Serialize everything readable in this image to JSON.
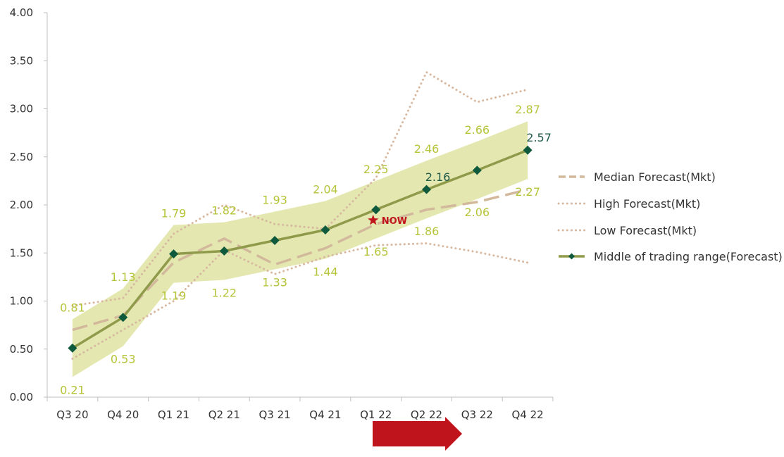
{
  "chart_data": {
    "type": "line",
    "categories": [
      "Q3 20",
      "Q4 20",
      "Q1 21",
      "Q2 21",
      "Q3 21",
      "Q4 21",
      "Q1 22",
      "Q2 22",
      "Q3 22",
      "Q4 22"
    ],
    "ylim": [
      0,
      4
    ],
    "y_ticks": [
      "0.00",
      "0.50",
      "1.00",
      "1.50",
      "2.00",
      "2.50",
      "3.00",
      "3.50",
      "4.00"
    ],
    "trading_range": {
      "upper": [
        0.81,
        1.13,
        1.79,
        1.82,
        1.93,
        2.04,
        2.25,
        2.46,
        2.66,
        2.87
      ],
      "lower": [
        0.21,
        0.53,
        1.19,
        1.22,
        1.33,
        1.44,
        1.65,
        1.86,
        2.06,
        2.27
      ],
      "upper_labels": [
        "0.81",
        "1.13",
        "1.79",
        "1.82",
        "1.93",
        "2.04",
        "2.25",
        "2.46",
        "2.66",
        "2.87"
      ],
      "lower_labels": [
        "0.21",
        "0.53",
        "1.19",
        "1.22",
        "1.33",
        "1.44",
        "1.65",
        "1.86",
        "2.06",
        "2.27"
      ]
    },
    "series": [
      {
        "name": "Median Forecast(Mkt)",
        "values": [
          0.7,
          0.85,
          1.4,
          1.65,
          1.38,
          1.55,
          1.8,
          1.95,
          2.03,
          2.16
        ]
      },
      {
        "name": "High Forecast(Mkt)",
        "values": [
          0.95,
          1.03,
          1.7,
          2.0,
          1.8,
          1.75,
          2.28,
          3.38,
          3.07,
          3.2
        ]
      },
      {
        "name": "Low Forecast(Mkt)",
        "values": [
          0.4,
          0.7,
          1.0,
          1.53,
          1.28,
          1.46,
          1.58,
          1.6,
          1.51,
          1.4
        ]
      },
      {
        "name": "Middle of trading range(Forecast)",
        "values": [
          0.51,
          0.83,
          1.49,
          1.52,
          1.63,
          1.74,
          1.95,
          2.16,
          2.36,
          2.57
        ]
      }
    ],
    "highlight_labels": [
      {
        "index": 7,
        "text": "2.16"
      },
      {
        "index": 9,
        "text": "2.57"
      }
    ],
    "now_marker": {
      "index": 6,
      "value": 1.84,
      "label": "NOW"
    },
    "colors": {
      "band": "#e4e8b0",
      "median": "#d2b99c",
      "dotted": "#d7b8a0",
      "middle_line": "#8f9a4a",
      "marker": "#0f5a3c",
      "range_label": "#b6c43a",
      "highlight_label": "#1f5a4a",
      "now": "#c0141c",
      "arrow": "#c0141c",
      "axis": "#bfbfbf"
    }
  }
}
